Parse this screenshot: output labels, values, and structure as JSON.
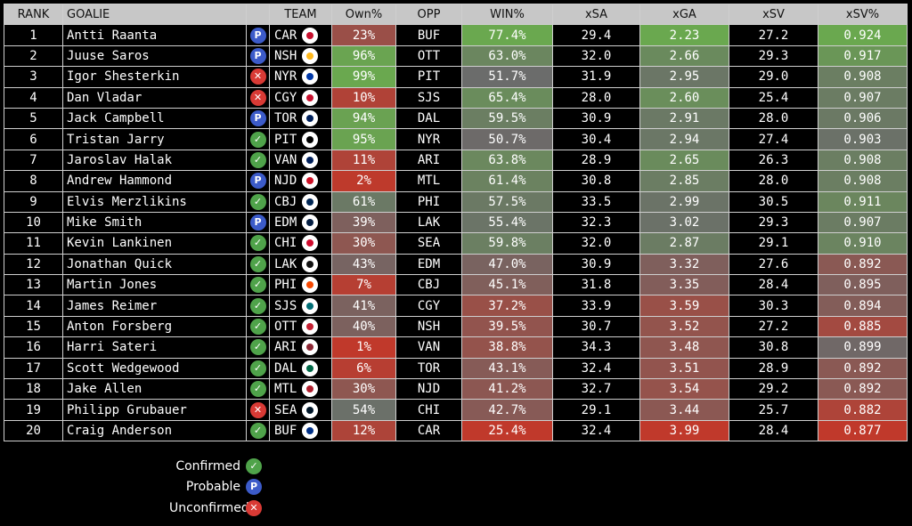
{
  "headers": {
    "rank": "RANK",
    "goalie": "GOALIE",
    "team": "TEAM",
    "own": "Own%",
    "opp": "OPP",
    "win": "WIN%",
    "xsa": "xSA",
    "xga": "xGA",
    "xsv": "xSV",
    "xsvp": "xSV%"
  },
  "status_icons": {
    "confirmed": "✓",
    "probable": "P",
    "unconfirmed": "✕"
  },
  "colors": {
    "green": "#6aa84f",
    "gray": "#6b6b6b",
    "red": "#c0392b"
  },
  "chart_data": {
    "type": "table",
    "columns": [
      "RANK",
      "GOALIE",
      "STATUS",
      "TEAM",
      "Own%",
      "OPP",
      "WIN%",
      "xSA",
      "xGA",
      "xSV",
      "xSV%"
    ],
    "rows": [
      {
        "rank": "1",
        "goalie": "Antti Raanta",
        "status": "probable",
        "team": "CAR",
        "own": "23%",
        "own_v": 23,
        "opp": "BUF",
        "win": "77.4%",
        "win_v": 77.4,
        "xsa": "29.4",
        "xga": "2.23",
        "xga_v": 2.23,
        "xsv": "27.2",
        "xsvp": "0.924",
        "xsvp_v": 0.924
      },
      {
        "rank": "2",
        "goalie": "Juuse Saros",
        "status": "probable",
        "team": "NSH",
        "own": "96%",
        "own_v": 96,
        "opp": "OTT",
        "win": "63.0%",
        "win_v": 63.0,
        "xsa": "32.0",
        "xga": "2.66",
        "xga_v": 2.66,
        "xsv": "29.3",
        "xsvp": "0.917",
        "xsvp_v": 0.917
      },
      {
        "rank": "3",
        "goalie": "Igor Shesterkin",
        "status": "unconfirmed",
        "team": "NYR",
        "own": "99%",
        "own_v": 99,
        "opp": "PIT",
        "win": "51.7%",
        "win_v": 51.7,
        "xsa": "31.9",
        "xga": "2.95",
        "xga_v": 2.95,
        "xsv": "29.0",
        "xsvp": "0.908",
        "xsvp_v": 0.908
      },
      {
        "rank": "4",
        "goalie": "Dan Vladar",
        "status": "unconfirmed",
        "team": "CGY",
        "own": "10%",
        "own_v": 10,
        "opp": "SJS",
        "win": "65.4%",
        "win_v": 65.4,
        "xsa": "28.0",
        "xga": "2.60",
        "xga_v": 2.6,
        "xsv": "25.4",
        "xsvp": "0.907",
        "xsvp_v": 0.907
      },
      {
        "rank": "5",
        "goalie": "Jack Campbell",
        "status": "probable",
        "team": "TOR",
        "own": "94%",
        "own_v": 94,
        "opp": "DAL",
        "win": "59.5%",
        "win_v": 59.5,
        "xsa": "30.9",
        "xga": "2.91",
        "xga_v": 2.91,
        "xsv": "28.0",
        "xsvp": "0.906",
        "xsvp_v": 0.906
      },
      {
        "rank": "6",
        "goalie": "Tristan Jarry",
        "status": "confirmed",
        "team": "PIT",
        "own": "95%",
        "own_v": 95,
        "opp": "NYR",
        "win": "50.7%",
        "win_v": 50.7,
        "xsa": "30.4",
        "xga": "2.94",
        "xga_v": 2.94,
        "xsv": "27.4",
        "xsvp": "0.903",
        "xsvp_v": 0.903
      },
      {
        "rank": "7",
        "goalie": "Jaroslav Halak",
        "status": "confirmed",
        "team": "VAN",
        "own": "11%",
        "own_v": 11,
        "opp": "ARI",
        "win": "63.8%",
        "win_v": 63.8,
        "xsa": "28.9",
        "xga": "2.65",
        "xga_v": 2.65,
        "xsv": "26.3",
        "xsvp": "0.908",
        "xsvp_v": 0.908
      },
      {
        "rank": "8",
        "goalie": "Andrew Hammond",
        "status": "probable",
        "team": "NJD",
        "own": "2%",
        "own_v": 2,
        "opp": "MTL",
        "win": "61.4%",
        "win_v": 61.4,
        "xsa": "30.8",
        "xga": "2.85",
        "xga_v": 2.85,
        "xsv": "28.0",
        "xsvp": "0.908",
        "xsvp_v": 0.908
      },
      {
        "rank": "9",
        "goalie": "Elvis Merzlikins",
        "status": "confirmed",
        "team": "CBJ",
        "own": "61%",
        "own_v": 61,
        "opp": "PHI",
        "win": "57.5%",
        "win_v": 57.5,
        "xsa": "33.5",
        "xga": "2.99",
        "xga_v": 2.99,
        "xsv": "30.5",
        "xsvp": "0.911",
        "xsvp_v": 0.911
      },
      {
        "rank": "10",
        "goalie": "Mike Smith",
        "status": "probable",
        "team": "EDM",
        "own": "39%",
        "own_v": 39,
        "opp": "LAK",
        "win": "55.4%",
        "win_v": 55.4,
        "xsa": "32.3",
        "xga": "3.02",
        "xga_v": 3.02,
        "xsv": "29.3",
        "xsvp": "0.907",
        "xsvp_v": 0.907
      },
      {
        "rank": "11",
        "goalie": "Kevin Lankinen",
        "status": "confirmed",
        "team": "CHI",
        "own": "30%",
        "own_v": 30,
        "opp": "SEA",
        "win": "59.8%",
        "win_v": 59.8,
        "xsa": "32.0",
        "xga": "2.87",
        "xga_v": 2.87,
        "xsv": "29.1",
        "xsvp": "0.910",
        "xsvp_v": 0.91
      },
      {
        "rank": "12",
        "goalie": "Jonathan Quick",
        "status": "confirmed",
        "team": "LAK",
        "own": "43%",
        "own_v": 43,
        "opp": "EDM",
        "win": "47.0%",
        "win_v": 47.0,
        "xsa": "30.9",
        "xga": "3.32",
        "xga_v": 3.32,
        "xsv": "27.6",
        "xsvp": "0.892",
        "xsvp_v": 0.892
      },
      {
        "rank": "13",
        "goalie": "Martin Jones",
        "status": "confirmed",
        "team": "PHI",
        "own": "7%",
        "own_v": 7,
        "opp": "CBJ",
        "win": "45.1%",
        "win_v": 45.1,
        "xsa": "31.8",
        "xga": "3.35",
        "xga_v": 3.35,
        "xsv": "28.4",
        "xsvp": "0.895",
        "xsvp_v": 0.895
      },
      {
        "rank": "14",
        "goalie": "James Reimer",
        "status": "confirmed",
        "team": "SJS",
        "own": "41%",
        "own_v": 41,
        "opp": "CGY",
        "win": "37.2%",
        "win_v": 37.2,
        "xsa": "33.9",
        "xga": "3.59",
        "xga_v": 3.59,
        "xsv": "30.3",
        "xsvp": "0.894",
        "xsvp_v": 0.894
      },
      {
        "rank": "15",
        "goalie": "Anton Forsberg",
        "status": "confirmed",
        "team": "OTT",
        "own": "40%",
        "own_v": 40,
        "opp": "NSH",
        "win": "39.5%",
        "win_v": 39.5,
        "xsa": "30.7",
        "xga": "3.52",
        "xga_v": 3.52,
        "xsv": "27.2",
        "xsvp": "0.885",
        "xsvp_v": 0.885
      },
      {
        "rank": "16",
        "goalie": "Harri Sateri",
        "status": "confirmed",
        "team": "ARI",
        "own": "1%",
        "own_v": 1,
        "opp": "VAN",
        "win": "38.8%",
        "win_v": 38.8,
        "xsa": "34.3",
        "xga": "3.48",
        "xga_v": 3.48,
        "xsv": "30.8",
        "xsvp": "0.899",
        "xsvp_v": 0.899
      },
      {
        "rank": "17",
        "goalie": "Scott Wedgewood",
        "status": "confirmed",
        "team": "DAL",
        "own": "6%",
        "own_v": 6,
        "opp": "TOR",
        "win": "43.1%",
        "win_v": 43.1,
        "xsa": "32.4",
        "xga": "3.51",
        "xga_v": 3.51,
        "xsv": "28.9",
        "xsvp": "0.892",
        "xsvp_v": 0.892
      },
      {
        "rank": "18",
        "goalie": "Jake Allen",
        "status": "confirmed",
        "team": "MTL",
        "own": "30%",
        "own_v": 30,
        "opp": "NJD",
        "win": "41.2%",
        "win_v": 41.2,
        "xsa": "32.7",
        "xga": "3.54",
        "xga_v": 3.54,
        "xsv": "29.2",
        "xsvp": "0.892",
        "xsvp_v": 0.892
      },
      {
        "rank": "19",
        "goalie": "Philipp Grubauer",
        "status": "unconfirmed",
        "team": "SEA",
        "own": "54%",
        "own_v": 54,
        "opp": "CHI",
        "win": "42.7%",
        "win_v": 42.7,
        "xsa": "29.1",
        "xga": "3.44",
        "xga_v": 3.44,
        "xsv": "25.7",
        "xsvp": "0.882",
        "xsvp_v": 0.882
      },
      {
        "rank": "20",
        "goalie": "Craig Anderson",
        "status": "confirmed",
        "team": "BUF",
        "own": "12%",
        "own_v": 12,
        "opp": "CAR",
        "win": "25.4%",
        "win_v": 25.4,
        "xsa": "32.4",
        "xga": "3.99",
        "xga_v": 3.99,
        "xsv": "28.4",
        "xsvp": "0.877",
        "xsvp_v": 0.877
      }
    ]
  },
  "legend": [
    {
      "label": "Confirmed",
      "status": "confirmed"
    },
    {
      "label": "Probable",
      "status": "probable"
    },
    {
      "label": "Unconfirmed",
      "status": "unconfirmed"
    }
  ]
}
